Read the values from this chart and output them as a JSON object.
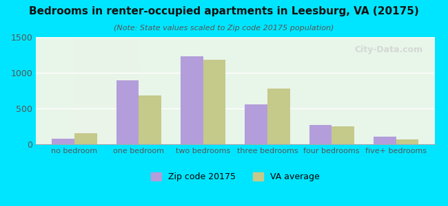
{
  "title": "Bedrooms in renter-occupied apartments in Leesburg, VA (20175)",
  "subtitle": "(Note: State values scaled to Zip code 20175 population)",
  "categories": [
    "no bedroom",
    "one bedroom",
    "two bedrooms",
    "three bedrooms",
    "four bedrooms",
    "five+ bedrooms"
  ],
  "zip_values": [
    75,
    890,
    1230,
    560,
    265,
    105
  ],
  "va_values": [
    155,
    680,
    1185,
    780,
    250,
    65
  ],
  "zip_color": "#b39ddb",
  "va_color": "#c5c98a",
  "background_outer": "#00e5ff",
  "background_inner_top": "#e8f5e9",
  "background_inner_bottom": "#f0f4e8",
  "ylim": [
    0,
    1500
  ],
  "yticks": [
    0,
    500,
    1000,
    1500
  ],
  "bar_width": 0.35,
  "legend_zip_label": "Zip code 20175",
  "legend_va_label": "VA average",
  "watermark": "City-Data.com"
}
